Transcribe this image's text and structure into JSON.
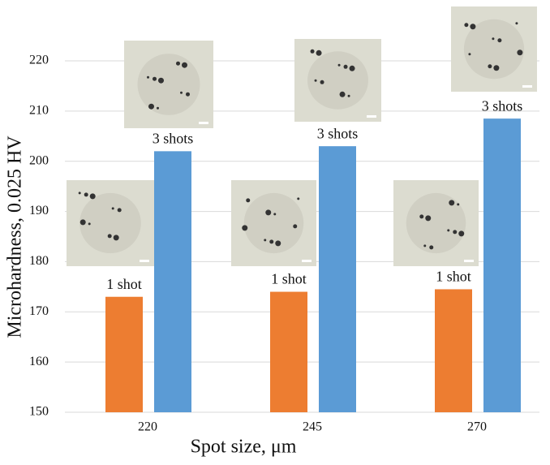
{
  "chart_data": {
    "type": "bar",
    "x_label": "Spot size, μm",
    "y_label": "Microhardness, 0.025 HV",
    "categories": [
      "220",
      "245",
      "270"
    ],
    "series": [
      {
        "color": "#ed7d31",
        "values": [
          173,
          174,
          174.5
        ],
        "bar_labels": [
          "1 shot",
          "1 shot",
          "1 shot"
        ]
      },
      {
        "color": "#5b9bd5",
        "values": [
          202,
          203,
          208.5
        ],
        "bar_labels": [
          "3 shots",
          "3 shots",
          "3 shots"
        ]
      }
    ],
    "ylim": [
      150,
      220
    ],
    "yticks": [
      150,
      160,
      170,
      180,
      190,
      200,
      210,
      220
    ],
    "grid": true
  }
}
